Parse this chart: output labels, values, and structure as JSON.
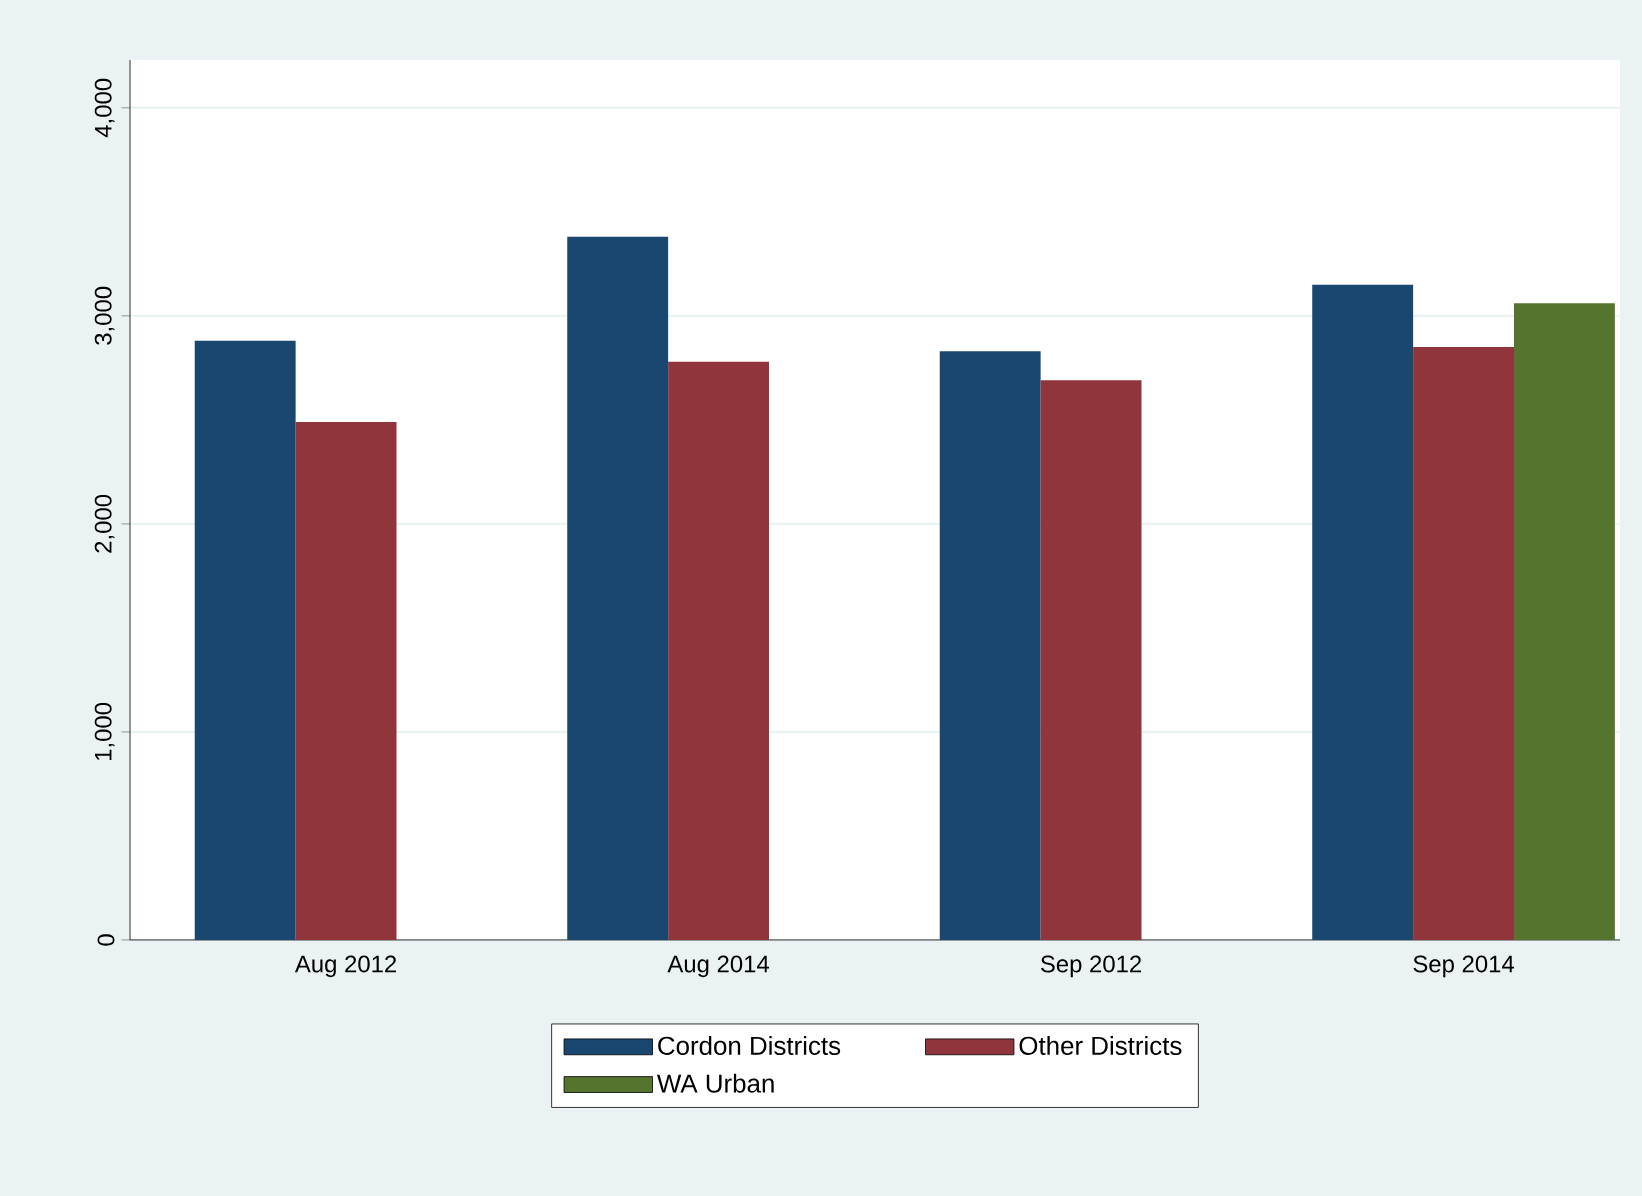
{
  "chart_data": {
    "type": "bar",
    "categories": [
      "Aug 2012",
      "Aug 2014",
      "Sep 2012",
      "Sep 2014"
    ],
    "series": [
      {
        "name": "Cordon Districts",
        "color": "#1a476f",
        "values": [
          2880,
          3380,
          2830,
          3150
        ]
      },
      {
        "name": "Other Districts",
        "color": "#90353b",
        "values": [
          2490,
          2780,
          2690,
          2850
        ]
      },
      {
        "name": "WA Urban",
        "color": "#55752f",
        "values": [
          null,
          null,
          null,
          3060
        ]
      }
    ],
    "ylim": [
      0,
      4230
    ],
    "yticks": [
      0,
      {
        "value": 1000,
        "label": "1,000"
      },
      {
        "value": 2000,
        "label": "2,000"
      },
      {
        "value": 3000,
        "label": "3,000"
      },
      {
        "value": 4000,
        "label": "4,000"
      }
    ],
    "grid": "y",
    "legend": "bottom"
  }
}
